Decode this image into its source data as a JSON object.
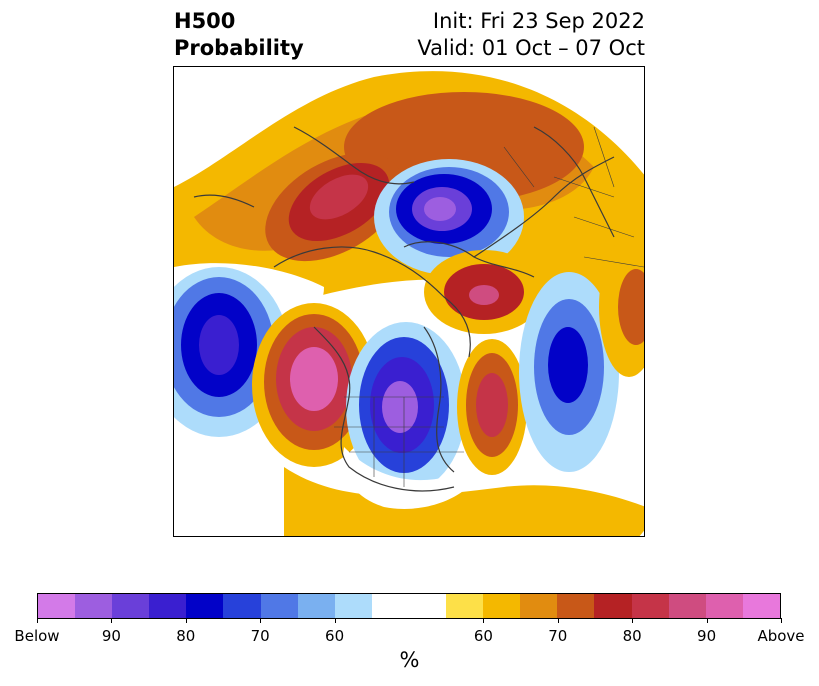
{
  "title": {
    "left_line1": "H500",
    "left_line2": "Probability",
    "right_line1": "Init: Fri 23 Sep 2022",
    "right_line2": "Valid: 01 Oct – 07 Oct"
  },
  "colorbar": {
    "unit": "%",
    "colors": [
      "#d37ae8",
      "#9d5ee0",
      "#6a3fd9",
      "#3a1fd0",
      "#0202c8",
      "#2741da",
      "#5078e6",
      "#7ab0f0",
      "#addcfb",
      "#ffffff",
      "#ffffff",
      "#fde048",
      "#f4b800",
      "#e18c10",
      "#c85818",
      "#b52224",
      "#c53448",
      "#cf4c80",
      "#de60ae",
      "#e878dc"
    ],
    "tick_labels": [
      "Below",
      "90",
      "80",
      "70",
      "60",
      "60",
      "70",
      "80",
      "90",
      "Above"
    ]
  },
  "map": {
    "anomalies": [
      {
        "kind": "below",
        "peak": 90,
        "location": "Arctic / Greenland north"
      },
      {
        "kind": "below",
        "peak": 90,
        "location": "Central Canada / Hudson Bay"
      },
      {
        "kind": "below",
        "peak": 90,
        "location": "North Pacific"
      },
      {
        "kind": "below",
        "peak": 80,
        "location": "North Atlantic"
      },
      {
        "kind": "above",
        "peak": 90,
        "location": "Gulf of Alaska / west coast"
      },
      {
        "kind": "above",
        "peak": 90,
        "location": "Western Atlantic / Newfoundland"
      },
      {
        "kind": "above",
        "peak": 90,
        "location": "Central Siberia"
      },
      {
        "kind": "above",
        "peak": 90,
        "location": "Northern Scandinavia / Barents"
      }
    ]
  }
}
